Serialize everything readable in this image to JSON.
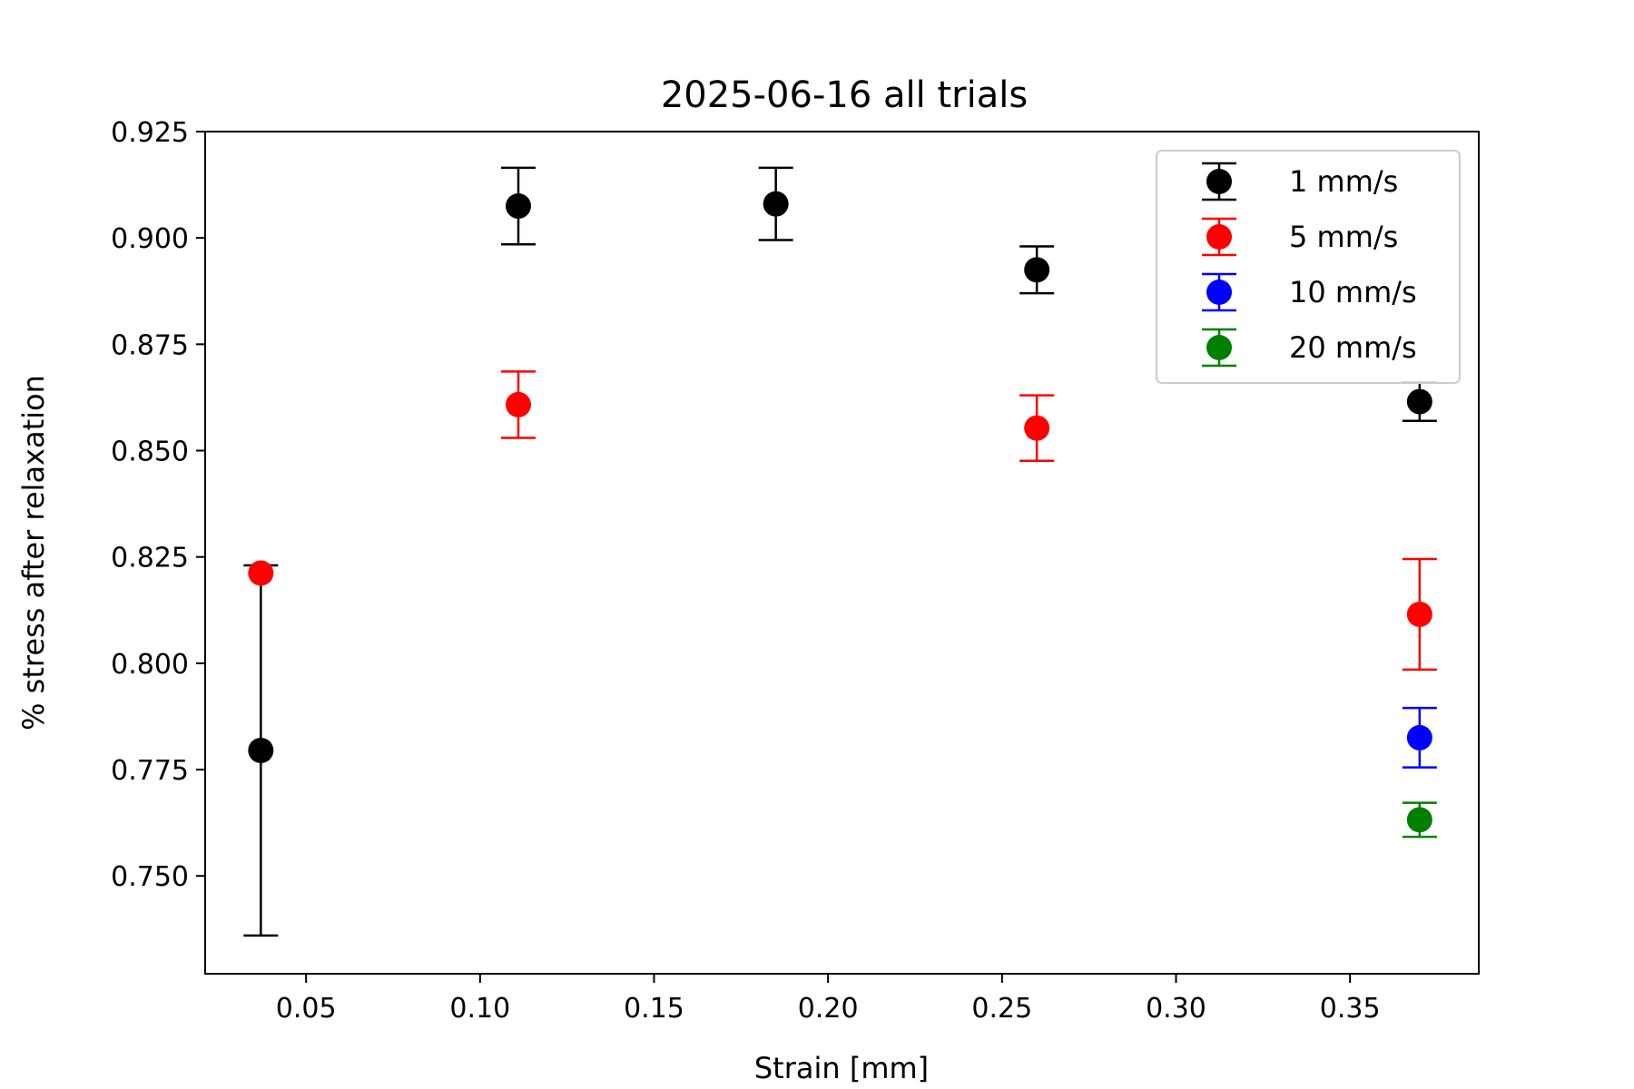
{
  "chart_data": {
    "type": "scatter",
    "title": "2025-06-16 all trials",
    "xlabel": "Strain [mm]",
    "ylabel": "% stress after relaxation",
    "xlim": [
      0.021,
      0.387
    ],
    "ylim": [
      0.727,
      0.925
    ],
    "xticks": [
      "0.05",
      "0.10",
      "0.15",
      "0.20",
      "0.25",
      "0.30",
      "0.35"
    ],
    "yticks": [
      "0.750",
      "0.775",
      "0.800",
      "0.825",
      "0.850",
      "0.875",
      "0.900",
      "0.925"
    ],
    "grid": false,
    "legend_position": "top-right",
    "error_bars": true,
    "series": [
      {
        "name": "1 mm/s",
        "color": "#000000",
        "points": [
          {
            "x": 0.037,
            "y": 0.7795,
            "err": 0.0435
          },
          {
            "x": 0.111,
            "y": 0.9075,
            "err": 0.009
          },
          {
            "x": 0.185,
            "y": 0.908,
            "err": 0.0085
          },
          {
            "x": 0.26,
            "y": 0.8925,
            "err": 0.0055
          },
          {
            "x": 0.37,
            "y": 0.8615,
            "err": 0.0045
          }
        ]
      },
      {
        "name": "5 mm/s",
        "color": "#ff0000",
        "points": [
          {
            "x": 0.037,
            "y": 0.8212,
            "err": 0.0
          },
          {
            "x": 0.111,
            "y": 0.8608,
            "err": 0.0078
          },
          {
            "x": 0.26,
            "y": 0.8553,
            "err": 0.0077
          },
          {
            "x": 0.37,
            "y": 0.8115,
            "err": 0.013
          }
        ]
      },
      {
        "name": "10 mm/s",
        "color": "#0000ff",
        "points": [
          {
            "x": 0.37,
            "y": 0.7825,
            "err": 0.007
          }
        ]
      },
      {
        "name": "20 mm/s",
        "color": "#008000",
        "points": [
          {
            "x": 0.37,
            "y": 0.7632,
            "err": 0.004
          }
        ]
      }
    ]
  }
}
